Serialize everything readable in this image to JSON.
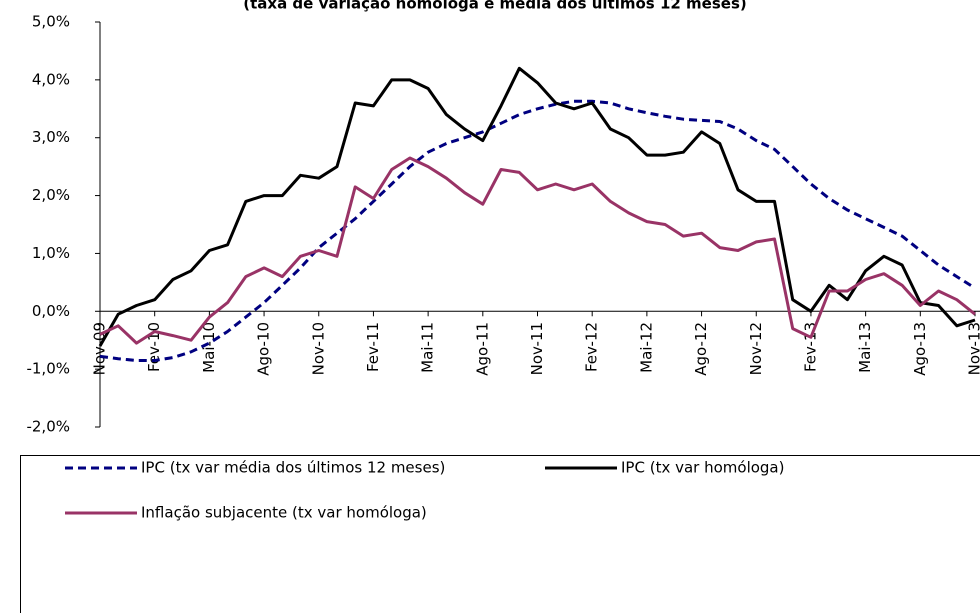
{
  "chart_data": {
    "type": "line",
    "title": "(taxa de variação homóloga e média dos últimos 12 meses)",
    "categories": [
      "Nov-09",
      null,
      null,
      "Fev-10",
      null,
      null,
      "Mai-10",
      null,
      null,
      "Ago-10",
      null,
      null,
      "Nov-10",
      null,
      null,
      "Fev-11",
      null,
      null,
      "Mai-11",
      null,
      null,
      "Ago-11",
      null,
      null,
      "Nov-11",
      null,
      null,
      "Fev-12",
      null,
      null,
      "Mai-12",
      null,
      null,
      "Ago-12",
      null,
      null,
      "Nov-12",
      null,
      null,
      "Fev-13",
      null,
      null,
      "Mai-13",
      null,
      null,
      "Ago-13",
      null,
      null,
      "Nov-13"
    ],
    "series": [
      {
        "name": "IPC (tx var média dos últimos 12 meses)",
        "color": "#000080",
        "dashed": true,
        "values": [
          -0.78,
          -0.82,
          -0.85,
          -0.85,
          -0.8,
          -0.7,
          -0.55,
          -0.35,
          -0.1,
          0.15,
          0.45,
          0.75,
          1.1,
          1.35,
          1.6,
          1.9,
          2.2,
          2.5,
          2.75,
          2.9,
          3.0,
          3.1,
          3.25,
          3.4,
          3.5,
          3.58,
          3.63,
          3.63,
          3.6,
          3.5,
          3.43,
          3.37,
          3.32,
          3.3,
          3.28,
          3.15,
          2.95,
          2.8,
          2.5,
          2.2,
          1.95,
          1.75,
          1.6,
          1.45,
          1.3,
          1.05,
          0.8,
          0.6,
          0.4
        ]
      },
      {
        "name": "IPC (tx var homóloga)",
        "color": "#000000",
        "dashed": false,
        "values": [
          -0.6,
          -0.05,
          0.1,
          0.2,
          0.55,
          0.7,
          1.05,
          1.15,
          1.9,
          2.0,
          2.0,
          2.35,
          2.3,
          2.5,
          3.6,
          3.55,
          4.0,
          4.0,
          3.85,
          3.4,
          3.15,
          2.95,
          3.55,
          4.2,
          3.95,
          3.6,
          3.5,
          3.6,
          3.15,
          3.0,
          2.7,
          2.7,
          2.75,
          3.1,
          2.9,
          2.1,
          1.9,
          1.9,
          0.2,
          0.0,
          0.45,
          0.2,
          0.7,
          0.95,
          0.8,
          0.15,
          0.1,
          -0.25,
          -0.15
        ]
      },
      {
        "name": "Inflação subjacente (tx var homóloga)",
        "color": "#993366",
        "dashed": false,
        "values": [
          -0.4,
          -0.25,
          -0.55,
          -0.35,
          -0.42,
          -0.5,
          -0.1,
          0.15,
          0.6,
          0.75,
          0.6,
          0.95,
          1.05,
          0.95,
          2.15,
          1.95,
          2.45,
          2.65,
          2.5,
          2.3,
          2.05,
          1.85,
          2.45,
          2.4,
          2.1,
          2.2,
          2.1,
          2.2,
          1.9,
          1.7,
          1.55,
          1.5,
          1.3,
          1.35,
          1.1,
          1.05,
          1.2,
          1.25,
          -0.3,
          -0.45,
          0.35,
          0.35,
          0.55,
          0.65,
          0.45,
          0.1,
          0.35,
          0.2,
          -0.05
        ]
      }
    ],
    "ylim": [
      -2,
      5
    ],
    "yticks": [
      {
        "value": -2,
        "label": "-2,0%"
      },
      {
        "value": -1,
        "label": "-1,0%"
      },
      {
        "value": 0,
        "label": "0,0%"
      },
      {
        "value": 1,
        "label": "1,0%"
      },
      {
        "value": 2,
        "label": "2,0%"
      },
      {
        "value": 3,
        "label": "3,0%"
      },
      {
        "value": 4,
        "label": "4,0%"
      },
      {
        "value": 5,
        "label": "5,0%"
      }
    ],
    "grid": false
  }
}
